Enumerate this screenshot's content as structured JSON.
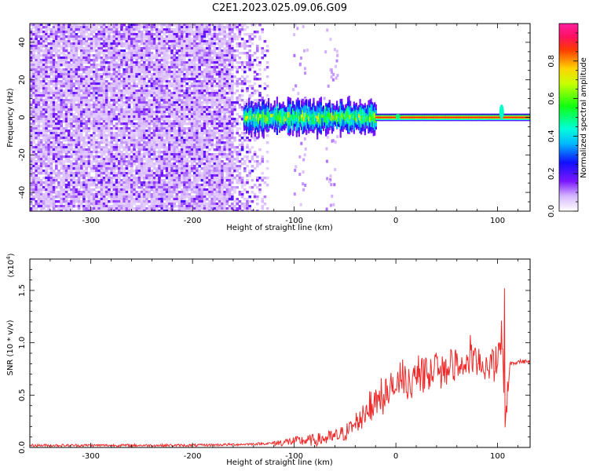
{
  "title": "C2E1.2023.025.09.06.G09",
  "colorbar": {
    "label": "Normalized spectral amplitude",
    "ticks": [
      "0.0",
      "0.2",
      "0.4",
      "0.6",
      "0.8"
    ],
    "tick_values": [
      0.0,
      0.2,
      0.4,
      0.6,
      0.8
    ],
    "range": [
      0,
      1
    ]
  },
  "colors": {
    "snr_line": "#ee2a2a",
    "signal_trace": "#ff2000"
  },
  "chart_data": [
    {
      "type": "heatmap",
      "xlabel": "Height of straight line (km)",
      "ylabel": "Frequency (Hz)",
      "xlim": [
        -360,
        132
      ],
      "ylim": [
        -50,
        50
      ],
      "x_ticks": [
        -300,
        -200,
        -100,
        0,
        100
      ],
      "x_tick_labels": [
        "-300",
        "-200",
        "-100",
        "0",
        "100"
      ],
      "y_ticks": [
        -40,
        -20,
        0,
        20,
        40
      ],
      "y_tick_labels": [
        "-40",
        "-20",
        "0",
        "20",
        "40"
      ],
      "noise_region_x": [
        -360,
        -125
      ],
      "signal_band": {
        "x_start": -150,
        "x_end": 132,
        "center_hz": 0,
        "segments": [
          {
            "x": [
              -150,
              -20
            ],
            "halfwidth_hz": 8,
            "amplitude": 0.35
          },
          {
            "x": [
              -20,
              132
            ],
            "halfwidth_hz": 2,
            "amplitude": 0.9
          }
        ]
      },
      "sparse_streaks_x": [
        -95,
        -65
      ],
      "features": [
        {
          "x": 104,
          "hz": 6,
          "amplitude": 0.45
        },
        {
          "x": 2,
          "hz": 1,
          "amplitude": 0.5
        }
      ]
    },
    {
      "type": "line",
      "xlabel": "Height of straight line (km)",
      "ylabel": "SNR (10 * v/v)",
      "y_multiplier_label": "(x10",
      "y_multiplier_exp": "4",
      "xlim": [
        -360,
        132
      ],
      "ylim": [
        0,
        1.8
      ],
      "x_ticks": [
        -300,
        -200,
        -100,
        0,
        100
      ],
      "x_tick_labels": [
        "-300",
        "-200",
        "-100",
        "0",
        "100"
      ],
      "y_ticks": [
        0.0,
        0.5,
        1.0,
        1.5
      ],
      "y_tick_labels": [
        "0.0",
        "0.5",
        "1.0",
        "1.5"
      ],
      "series": [
        {
          "x": [
            -360,
            -300,
            -200,
            -150,
            -120,
            -100,
            -80,
            -60,
            -50,
            -40,
            -30,
            -25,
            -20,
            -10,
            0,
            10,
            20,
            30,
            40,
            50,
            60,
            70,
            80,
            90,
            100,
            104,
            106,
            108,
            112,
            120,
            132
          ],
          "y": [
            0.02,
            0.02,
            0.02,
            0.03,
            0.04,
            0.06,
            0.07,
            0.1,
            0.14,
            0.22,
            0.35,
            0.4,
            0.45,
            0.52,
            0.58,
            0.62,
            0.66,
            0.7,
            0.74,
            0.77,
            0.79,
            0.8,
            0.81,
            0.8,
            0.8,
            1.1,
            0.5,
            0.15,
            0.8,
            0.82,
            0.82
          ]
        }
      ]
    }
  ]
}
